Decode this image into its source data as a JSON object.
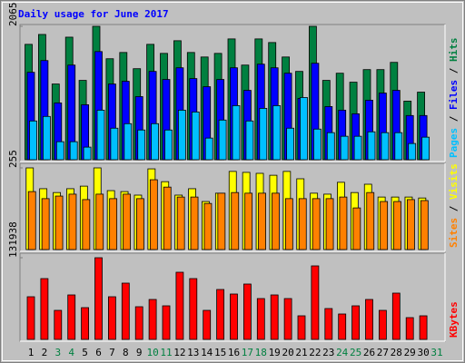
{
  "chart_data": [
    {
      "type": "bar",
      "title": "Daily usage for June 2017",
      "ylim": [
        0,
        2065
      ],
      "yticks": [
        2065
      ],
      "series": [
        {
          "name": "Hits",
          "color": "#008040",
          "values": [
            1786,
            1939,
            1172,
            1897,
            1228,
            2065,
            1563,
            1660,
            1409,
            1786,
            1646,
            1842,
            1660,
            1590,
            1646,
            1870,
            1465,
            1870,
            1814,
            1590,
            1367,
            2065,
            1228,
            1339,
            1200,
            1395,
            1395,
            1507,
            907,
            1046,
            null
          ]
        },
        {
          "name": "Files",
          "color": "#0000ff",
          "values": [
            1353,
            1535,
            879,
            1465,
            851,
            1674,
            1172,
            1214,
            977,
            1367,
            1242,
            1423,
            1256,
            1130,
            1242,
            1423,
            1074,
            1479,
            1423,
            1339,
            949,
            1493,
            823,
            767,
            711,
            921,
            1032,
            1074,
            684,
            684,
            null
          ]
        },
        {
          "name": "Pages",
          "color": "#00c0ff",
          "values": [
            600,
            670,
            279,
            279,
            195,
            767,
            488,
            558,
            460,
            558,
            460,
            767,
            739,
            335,
            614,
            837,
            600,
            795,
            837,
            488,
            963,
            474,
            419,
            363,
            363,
            432,
            419,
            419,
            251,
            349,
            null
          ]
        }
      ]
    },
    {
      "type": "bar",
      "ylim": [
        0,
        255
      ],
      "yticks": [
        255
      ],
      "series": [
        {
          "name": "Visits",
          "color": "#ffff00",
          "values": [
            255,
            190,
            178,
            190,
            198,
            255,
            184,
            181,
            170,
            252,
            212,
            170,
            190,
            150,
            176,
            244,
            241,
            238,
            232,
            244,
            221,
            176,
            173,
            210,
            178,
            204,
            164,
            164,
            164,
            161,
            null
          ]
        },
        {
          "name": "Sites",
          "color": "#ff8000",
          "values": [
            181,
            159,
            167,
            173,
            156,
            173,
            159,
            173,
            159,
            218,
            195,
            164,
            164,
            144,
            176,
            178,
            176,
            176,
            176,
            159,
            159,
            159,
            159,
            164,
            130,
            178,
            150,
            150,
            156,
            153,
            null
          ]
        }
      ]
    },
    {
      "type": "bar",
      "ylim": [
        0,
        131938
      ],
      "yticks": [
        131938
      ],
      "categories": [
        "1",
        "2",
        "3",
        "4",
        "5",
        "6",
        "7",
        "8",
        "9",
        "10",
        "11",
        "12",
        "13",
        "14",
        "15",
        "16",
        "17",
        "18",
        "19",
        "20",
        "21",
        "22",
        "23",
        "24",
        "25",
        "26",
        "27",
        "28",
        "29",
        "30",
        "31"
      ],
      "category_colors": [
        "#000000",
        "#000000",
        "#008040",
        "#008040",
        "#000000",
        "#000000",
        "#000000",
        "#000000",
        "#000000",
        "#008040",
        "#008040",
        "#000000",
        "#000000",
        "#000000",
        "#000000",
        "#000000",
        "#008040",
        "#008040",
        "#000000",
        "#000000",
        "#000000",
        "#000000",
        "#000000",
        "#008040",
        "#008040",
        "#000000",
        "#000000",
        "#000000",
        "#000000",
        "#000000",
        "#008040"
      ],
      "series": [
        {
          "name": "KBytes",
          "color": "#ff0000",
          "values": [
            68902,
            98222,
            46912,
            71834,
            51310,
            131938,
            68902,
            90892,
            52776,
            64504,
            54242,
            108484,
            98222,
            46912,
            80630,
            73300,
            89426,
            65970,
            71834,
            65970,
            38116,
            118746,
            49844,
            41048,
            54242,
            64504,
            46912,
            74766,
            35184,
            38116,
            null
          ]
        }
      ]
    }
  ]
}
